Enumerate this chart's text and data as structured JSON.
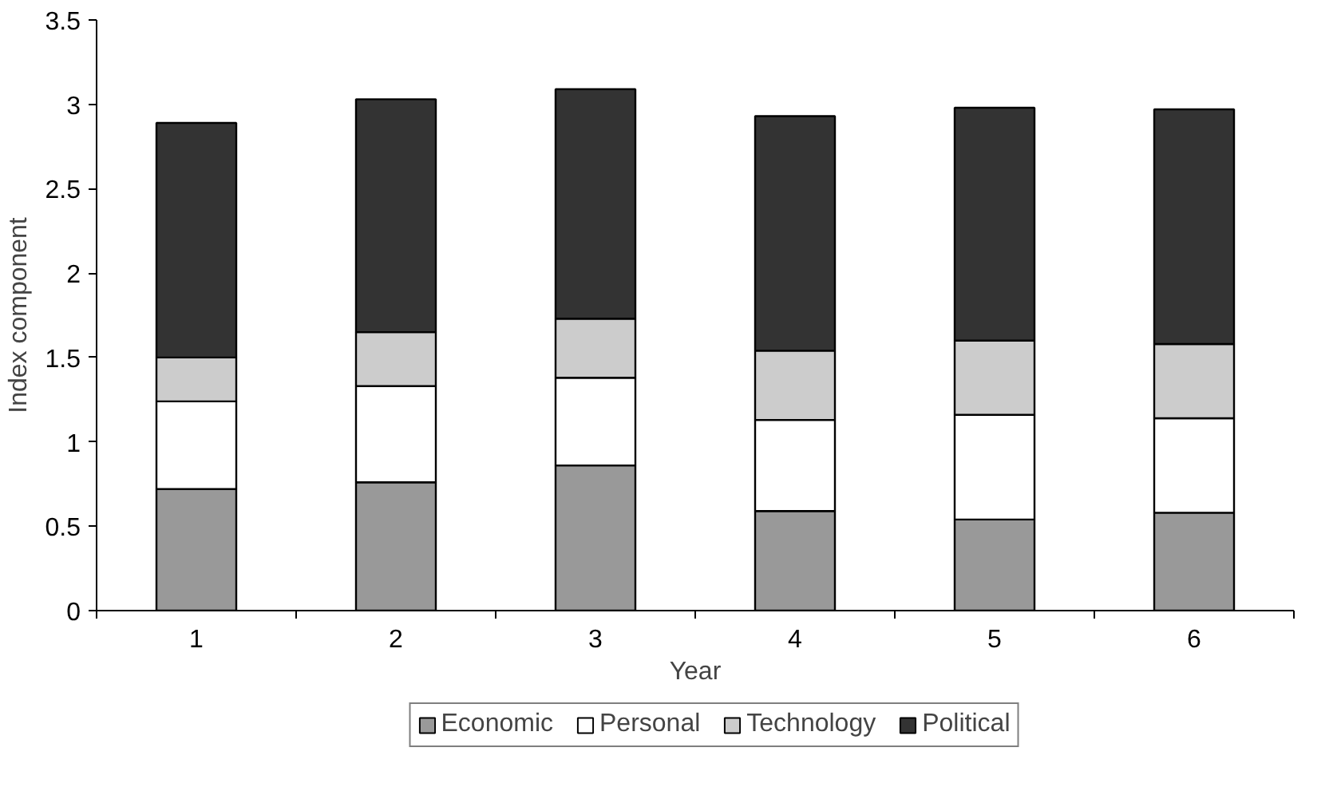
{
  "chart_data": {
    "type": "bar",
    "stacked": true,
    "xlabel": "Year",
    "ylabel": "Index component",
    "categories": [
      "1",
      "2",
      "3",
      "4",
      "5",
      "6"
    ],
    "series": [
      {
        "name": "Economic",
        "color": "#999999",
        "values": [
          0.72,
          0.76,
          0.86,
          0.59,
          0.54,
          0.58
        ]
      },
      {
        "name": "Personal",
        "color": "#ffffff",
        "values": [
          0.52,
          0.57,
          0.52,
          0.54,
          0.62,
          0.56
        ]
      },
      {
        "name": "Technology",
        "color": "#cccccc",
        "values": [
          0.26,
          0.32,
          0.35,
          0.41,
          0.44,
          0.44
        ]
      },
      {
        "name": "Political",
        "color": "#333333",
        "values": [
          1.39,
          1.38,
          1.36,
          1.39,
          1.38,
          1.39
        ]
      }
    ],
    "ylim": [
      0,
      3.5
    ],
    "yticks": [
      0,
      0.5,
      1,
      1.5,
      2,
      2.5,
      3,
      3.5
    ],
    "grid": false,
    "legend": "bottom"
  }
}
